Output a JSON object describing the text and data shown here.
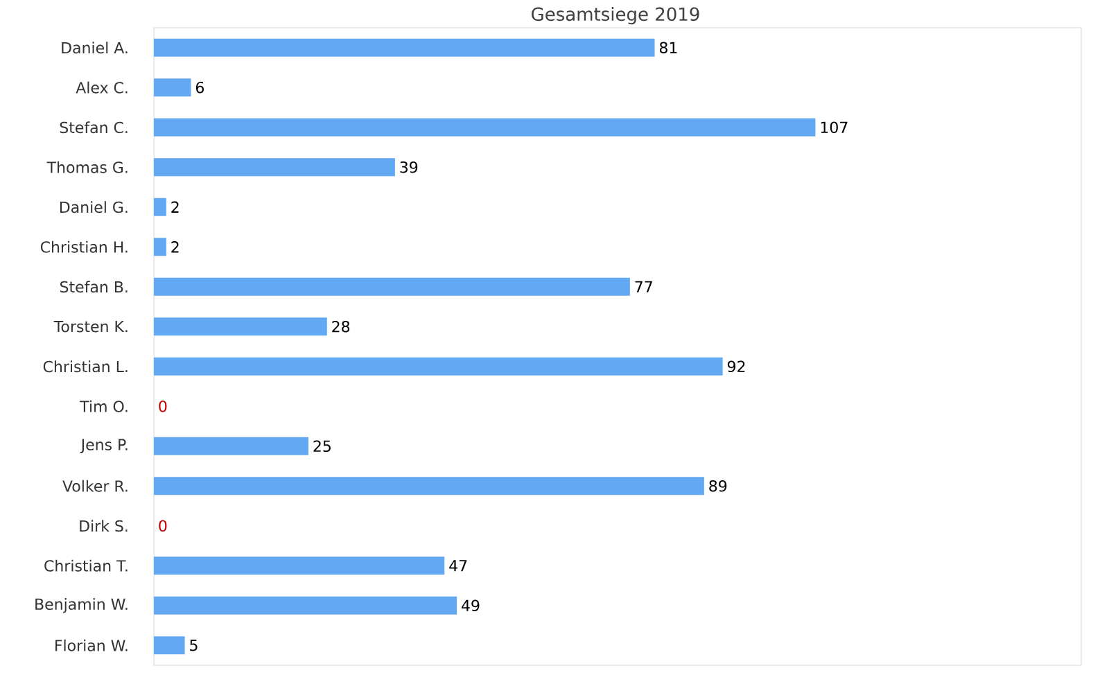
{
  "chart_data": {
    "type": "bar",
    "orientation": "horizontal",
    "title": "Gesamtsiege 2019",
    "categories": [
      "Daniel A.",
      "Alex C.",
      "Stefan C.",
      "Thomas G.",
      "Daniel G.",
      "Christian H.",
      "Stefan B.",
      "Torsten K.",
      "Christian L.",
      "Tim O.",
      "Jens P.",
      "Volker R.",
      "Dirk S.",
      "Christian T.",
      "Benjamin W.",
      "Florian W."
    ],
    "values": [
      81,
      6,
      107,
      39,
      2,
      2,
      77,
      28,
      92,
      0,
      25,
      89,
      0,
      47,
      49,
      5
    ],
    "color": "#63a8f3",
    "xlim": [
      0,
      150
    ],
    "data_labels": true,
    "tick_labels": "y"
  }
}
